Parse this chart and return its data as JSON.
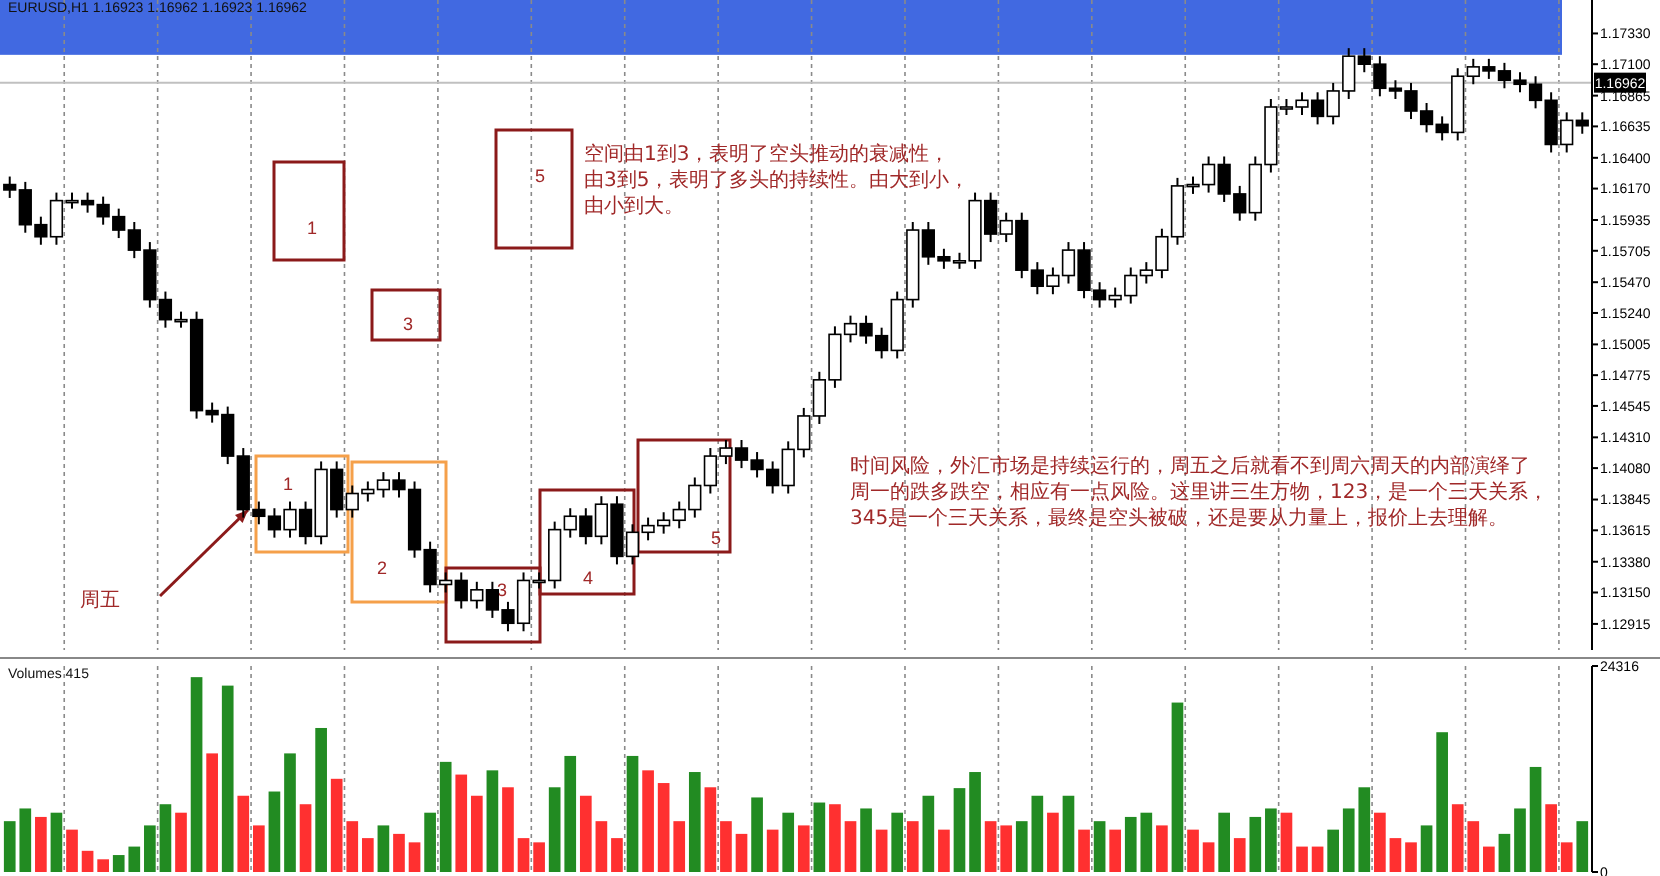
{
  "chart_data": [
    {
      "type": "candlestick",
      "title": "EURUSD,H1 1.16923 1.16962 1.16923 1.16962",
      "categories": [
        null,
        null,
        null,
        null,
        null,
        null,
        null,
        null,
        null,
        null,
        null,
        null,
        null,
        null,
        null,
        null,
        null,
        null,
        null,
        null,
        null,
        null,
        null,
        null,
        null,
        null,
        null,
        null,
        null,
        null,
        null,
        null,
        null,
        null,
        null,
        null,
        null,
        null,
        null,
        null,
        null,
        null,
        null,
        null,
        null,
        null,
        null,
        null,
        null,
        null,
        null,
        null,
        null,
        null,
        null,
        null,
        null,
        null,
        null,
        null,
        null,
        null,
        null,
        null,
        null,
        null,
        null,
        null,
        null,
        null,
        null,
        null,
        null,
        null,
        null,
        null,
        null,
        null,
        null,
        null,
        null,
        null,
        null,
        null,
        null,
        null,
        null,
        null,
        null,
        null,
        null,
        null,
        null,
        null,
        null,
        null,
        null,
        null,
        null,
        null,
        null,
        null
      ],
      "color": "#000000",
      "ohlc": [
        [
          1.162,
          1.1626,
          1.161,
          1.1616
        ],
        [
          1.1616,
          1.1622,
          1.1584,
          1.159
        ],
        [
          1.159,
          1.1596,
          1.1575,
          1.1581
        ],
        [
          1.1581,
          1.1614,
          1.1575,
          1.1608
        ],
        [
          1.1608,
          1.1614,
          1.1602,
          1.1608
        ],
        [
          1.1608,
          1.1614,
          1.1599,
          1.1605
        ],
        [
          1.1605,
          1.1611,
          1.159,
          1.1596
        ],
        [
          1.1596,
          1.1602,
          1.158,
          1.1586
        ],
        [
          1.1586,
          1.1592,
          1.1565,
          1.1571
        ],
        [
          1.1571,
          1.1577,
          1.1528,
          1.1534
        ],
        [
          1.1534,
          1.154,
          1.1513,
          1.1519
        ],
        [
          1.1519,
          1.1525,
          1.1513,
          1.1519
        ],
        [
          1.1519,
          1.1525,
          1.1445,
          1.1451
        ],
        [
          1.1451,
          1.1457,
          1.1442,
          1.1448
        ],
        [
          1.1448,
          1.1454,
          1.1411,
          1.1417
        ],
        [
          1.1417,
          1.1423,
          1.1371,
          1.1377
        ],
        [
          1.1377,
          1.1383,
          1.1366,
          1.1372
        ],
        [
          1.1372,
          1.1378,
          1.1356,
          1.1362
        ],
        [
          1.1362,
          1.1383,
          1.1356,
          1.1377
        ],
        [
          1.1377,
          1.1383,
          1.1351,
          1.1357
        ],
        [
          1.1357,
          1.1413,
          1.1351,
          1.1407
        ],
        [
          1.1407,
          1.1413,
          1.1371,
          1.1377
        ],
        [
          1.1377,
          1.1395,
          1.1371,
          1.1389
        ],
        [
          1.1389,
          1.1398,
          1.1383,
          1.1392
        ],
        [
          1.1392,
          1.1405,
          1.1386,
          1.1399
        ],
        [
          1.1399,
          1.1405,
          1.1386,
          1.1392
        ],
        [
          1.1392,
          1.1398,
          1.1341,
          1.1347
        ],
        [
          1.1347,
          1.1353,
          1.1315,
          1.1321
        ],
        [
          1.1321,
          1.133,
          1.1315,
          1.1324
        ],
        [
          1.1324,
          1.133,
          1.1303,
          1.1309
        ],
        [
          1.1309,
          1.1323,
          1.1303,
          1.1317
        ],
        [
          1.1317,
          1.1323,
          1.1296,
          1.1302
        ],
        [
          1.1302,
          1.1308,
          1.1286,
          1.1292
        ],
        [
          1.1292,
          1.133,
          1.1286,
          1.1324
        ],
        [
          1.1324,
          1.133,
          1.1318,
          1.1324
        ],
        [
          1.1324,
          1.1368,
          1.1318,
          1.1362
        ],
        [
          1.1362,
          1.1378,
          1.1356,
          1.1372
        ],
        [
          1.1372,
          1.1378,
          1.1351,
          1.1357
        ],
        [
          1.1357,
          1.1387,
          1.1351,
          1.1381
        ],
        [
          1.1381,
          1.1387,
          1.1336,
          1.1342
        ],
        [
          1.1342,
          1.1366,
          1.1336,
          1.136
        ],
        [
          1.136,
          1.1371,
          1.1354,
          1.1365
        ],
        [
          1.1365,
          1.1375,
          1.1359,
          1.1369
        ],
        [
          1.1369,
          1.1383,
          1.1363,
          1.1377
        ],
        [
          1.1377,
          1.1401,
          1.1371,
          1.1395
        ],
        [
          1.1395,
          1.1423,
          1.1389,
          1.1417
        ],
        [
          1.1417,
          1.1429,
          1.1411,
          1.1423
        ],
        [
          1.1423,
          1.1429,
          1.1408,
          1.1414
        ],
        [
          1.1414,
          1.142,
          1.1401,
          1.1407
        ],
        [
          1.1407,
          1.1413,
          1.1389,
          1.1395
        ],
        [
          1.1395,
          1.1428,
          1.1389,
          1.1422
        ],
        [
          1.1422,
          1.1453,
          1.1416,
          1.1447
        ],
        [
          1.1447,
          1.148,
          1.1441,
          1.1474
        ],
        [
          1.1474,
          1.1514,
          1.1468,
          1.1508
        ],
        [
          1.1508,
          1.1522,
          1.1502,
          1.1516
        ],
        [
          1.1516,
          1.1522,
          1.1501,
          1.1507
        ],
        [
          1.1507,
          1.1513,
          1.149,
          1.1496
        ],
        [
          1.1496,
          1.154,
          1.149,
          1.1534
        ],
        [
          1.1534,
          1.1592,
          1.1528,
          1.1586
        ],
        [
          1.1586,
          1.1592,
          1.156,
          1.1566
        ],
        [
          1.1566,
          1.1572,
          1.1557,
          1.1563
        ],
        [
          1.1563,
          1.1569,
          1.1557,
          1.1563
        ],
        [
          1.1563,
          1.1614,
          1.1557,
          1.1608
        ],
        [
          1.1608,
          1.1614,
          1.1577,
          1.1583
        ],
        [
          1.1583,
          1.1599,
          1.1577,
          1.1593
        ],
        [
          1.1593,
          1.1599,
          1.155,
          1.1556
        ],
        [
          1.1556,
          1.1562,
          1.1538,
          1.1544
        ],
        [
          1.1544,
          1.1558,
          1.1538,
          1.1552
        ],
        [
          1.1552,
          1.1577,
          1.1546,
          1.1571
        ],
        [
          1.1571,
          1.1577,
          1.1535,
          1.1541
        ],
        [
          1.1541,
          1.1547,
          1.1528,
          1.1534
        ],
        [
          1.1534,
          1.1543,
          1.1528,
          1.1537
        ],
        [
          1.1537,
          1.1558,
          1.1531,
          1.1552
        ],
        [
          1.1552,
          1.1562,
          1.1546,
          1.1556
        ],
        [
          1.1556,
          1.1587,
          1.155,
          1.1581
        ],
        [
          1.1581,
          1.1625,
          1.1575,
          1.1619
        ],
        [
          1.1619,
          1.1626,
          1.1613,
          1.162
        ],
        [
          1.162,
          1.1641,
          1.1614,
          1.1635
        ],
        [
          1.1635,
          1.1641,
          1.1607,
          1.1613
        ],
        [
          1.1613,
          1.1619,
          1.1593,
          1.1599
        ],
        [
          1.1599,
          1.1641,
          1.1593,
          1.1635
        ],
        [
          1.1635,
          1.1684,
          1.1629,
          1.1678
        ],
        [
          1.1678,
          1.1684,
          1.1672,
          1.1678
        ],
        [
          1.1678,
          1.1689,
          1.1672,
          1.1683
        ],
        [
          1.1683,
          1.1689,
          1.1665,
          1.1671
        ],
        [
          1.1671,
          1.1696,
          1.1665,
          1.169
        ],
        [
          1.169,
          1.1722,
          1.1684,
          1.1716
        ],
        [
          1.1716,
          1.1722,
          1.1704,
          1.171
        ],
        [
          1.171,
          1.1716,
          1.1686,
          1.1692
        ],
        [
          1.1692,
          1.1698,
          1.1684,
          1.169
        ],
        [
          1.169,
          1.1696,
          1.1669,
          1.1675
        ],
        [
          1.1675,
          1.1681,
          1.1659,
          1.1665
        ],
        [
          1.1665,
          1.1671,
          1.1653,
          1.1659
        ],
        [
          1.1659,
          1.1707,
          1.1653,
          1.1701
        ],
        [
          1.1701,
          1.1714,
          1.1695,
          1.1708
        ],
        [
          1.1708,
          1.1714,
          1.1699,
          1.1705
        ],
        [
          1.1705,
          1.1711,
          1.1692,
          1.1698
        ],
        [
          1.1698,
          1.1704,
          1.1689,
          1.1695
        ],
        [
          1.1695,
          1.1701,
          1.1677,
          1.1683
        ],
        [
          1.1683,
          1.1689,
          1.1644,
          1.165
        ],
        [
          1.165,
          1.1674,
          1.1644,
          1.1668
        ],
        [
          1.1668,
          1.1674,
          1.1658,
          1.1664
        ]
      ],
      "ylim": [
        1.1272,
        1.1758
      ],
      "yticks": [
        {
          "value": 1.12915,
          "label": "1.12915"
        },
        {
          "value": 1.1315,
          "label": "1.13150"
        },
        {
          "value": 1.1338,
          "label": "1.13380"
        },
        {
          "value": 1.13615,
          "label": "1.13615"
        },
        {
          "value": 1.13845,
          "label": "1.13845"
        },
        {
          "value": 1.1408,
          "label": "1.14080"
        },
        {
          "value": 1.1431,
          "label": "1.14310"
        },
        {
          "value": 1.14545,
          "label": "1.14545"
        },
        {
          "value": 1.14775,
          "label": "1.14775"
        },
        {
          "value": 1.15005,
          "label": "1.15005"
        },
        {
          "value": 1.1524,
          "label": "1.15240"
        },
        {
          "value": 1.1547,
          "label": "1.15470"
        },
        {
          "value": 1.15705,
          "label": "1.15705"
        },
        {
          "value": 1.15935,
          "label": "1.15935"
        },
        {
          "value": 1.1617,
          "label": "1.16170"
        },
        {
          "value": 1.164,
          "label": "1.16400"
        },
        {
          "value": 1.16635,
          "label": "1.16635"
        },
        {
          "value": 1.16865,
          "label": "1.16865"
        },
        {
          "value": 1.171,
          "label": "1.17100"
        },
        {
          "value": 1.1733,
          "label": "1.17330"
        }
      ],
      "grid": "x",
      "ref_lines": [
        {
          "axis": "y",
          "value": 1.16962,
          "label": "1.16962",
          "color": "#c0c0c0"
        }
      ],
      "bands": [
        {
          "axis": "y",
          "from": 1.1717,
          "to": 1.1758,
          "color": "#4169e1"
        }
      ],
      "annotations": [
        "空间由1到3，表明了空头推动的衰减性，由3到5，表明了多头的持续性。由大到小，由小到大。",
        "时间风险，外汇市场是持续运行的，周五之后就看不到周六周天的内部演绎了周一的跌多跌空，相应有一点风险。这里讲三生万物，123，是一个三天关系，345是一个三天关系，最终是空头被破，还是要从力量上，报价上去理解。",
        "周五",
        "1",
        "2",
        "3",
        "4",
        "5",
        "1",
        "3",
        "5"
      ]
    },
    {
      "type": "bar",
      "title": "Volumes 415",
      "categories": [
        null,
        null,
        null,
        null,
        null,
        null,
        null,
        null,
        null,
        null,
        null,
        null,
        null,
        null,
        null,
        null,
        null,
        null,
        null,
        null,
        null,
        null,
        null,
        null,
        null,
        null,
        null,
        null,
        null,
        null,
        null,
        null,
        null,
        null,
        null,
        null,
        null,
        null,
        null,
        null,
        null,
        null,
        null,
        null,
        null,
        null,
        null,
        null,
        null,
        null,
        null,
        null,
        null,
        null,
        null,
        null,
        null,
        null,
        null,
        null,
        null,
        null,
        null,
        null,
        null,
        null,
        null,
        null,
        null,
        null,
        null,
        null,
        null,
        null,
        null,
        null,
        null,
        null,
        null,
        null,
        null,
        null,
        null,
        null,
        null,
        null,
        null,
        null,
        null,
        null,
        null,
        null,
        null,
        null,
        null,
        null,
        null,
        null,
        null,
        null,
        null,
        null
      ],
      "values": [
        6000,
        7500,
        6500,
        7000,
        5000,
        2500,
        1500,
        2000,
        3000,
        5500,
        8000,
        7000,
        23000,
        14000,
        22000,
        9000,
        5500,
        9500,
        14000,
        8000,
        17000,
        11000,
        6000,
        4000,
        5500,
        4500,
        3500,
        7000,
        13000,
        11500,
        9000,
        12000,
        10000,
        4000,
        3500,
        10000,
        13700,
        9000,
        6000,
        4000,
        13700,
        12000,
        10500,
        6000,
        11800,
        10000,
        6000,
        4500,
        8800,
        5000,
        7000,
        5500,
        8200,
        8000,
        6000,
        7500,
        5000,
        7000,
        6000,
        9000,
        5000,
        9900,
        11800,
        6000,
        5500,
        6000,
        9000,
        7000,
        9000,
        5000,
        6000,
        5000,
        6500,
        7000,
        5500,
        20000,
        5000,
        3500,
        7000,
        4000,
        6500,
        7500,
        7000,
        3000,
        3000,
        5000,
        7500,
        10000,
        7000,
        4000,
        3500,
        5500,
        16500,
        8000,
        6000,
        3000,
        4500,
        7500,
        12400,
        8000,
        3500,
        6000
      ],
      "colors": [
        "#228b22",
        "#228b22",
        "#ff3030",
        "#228b22",
        "#ff3030",
        "#ff3030",
        "#ff3030",
        "#228b22",
        "#228b22",
        "#228b22",
        "#228b22",
        "#ff3030",
        "#228b22",
        "#ff3030",
        "#228b22",
        "#ff3030",
        "#ff3030",
        "#228b22",
        "#228b22",
        "#ff3030",
        "#228b22",
        "#ff3030",
        "#ff3030",
        "#ff3030",
        "#228b22",
        "#ff3030",
        "#ff3030",
        "#228b22",
        "#228b22",
        "#ff3030",
        "#ff3030",
        "#228b22",
        "#ff3030",
        "#ff3030",
        "#ff3030",
        "#228b22",
        "#228b22",
        "#ff3030",
        "#ff3030",
        "#ff3030",
        "#228b22",
        "#ff3030",
        "#ff3030",
        "#ff3030",
        "#228b22",
        "#ff3030",
        "#ff3030",
        "#ff3030",
        "#228b22",
        "#ff3030",
        "#228b22",
        "#ff3030",
        "#228b22",
        "#ff3030",
        "#ff3030",
        "#228b22",
        "#ff3030",
        "#228b22",
        "#ff3030",
        "#228b22",
        "#ff3030",
        "#228b22",
        "#228b22",
        "#ff3030",
        "#ff3030",
        "#228b22",
        "#228b22",
        "#ff3030",
        "#228b22",
        "#ff3030",
        "#228b22",
        "#ff3030",
        "#228b22",
        "#228b22",
        "#ff3030",
        "#228b22",
        "#ff3030",
        "#ff3030",
        "#228b22",
        "#ff3030",
        "#228b22",
        "#228b22",
        "#ff3030",
        "#ff3030",
        "#ff3030",
        "#228b22",
        "#228b22",
        "#228b22",
        "#ff3030",
        "#ff3030",
        "#ff3030",
        "#228b22",
        "#228b22",
        "#ff3030",
        "#ff3030",
        "#ff3030",
        "#228b22",
        "#228b22",
        "#228b22",
        "#ff3030",
        "#ff3030",
        "#228b22"
      ],
      "ylim": [
        0,
        24316
      ],
      "yticks": [
        0,
        24316
      ],
      "grid": "x"
    }
  ]
}
